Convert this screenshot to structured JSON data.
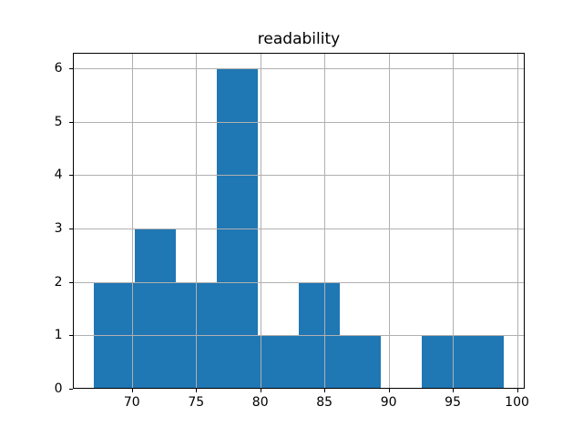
{
  "chart_data": {
    "type": "bar",
    "subtype": "histogram",
    "title": "readability",
    "xlabel": "",
    "ylabel": "",
    "bin_edges": [
      67.0,
      70.2,
      73.4,
      76.6,
      79.8,
      83.0,
      86.2,
      89.4,
      92.6,
      95.8,
      99.0
    ],
    "values": [
      2,
      3,
      2,
      6,
      1,
      2,
      1,
      0,
      1,
      1
    ],
    "x_ticks": [
      70,
      75,
      80,
      85,
      90,
      95,
      100
    ],
    "y_ticks": [
      0,
      1,
      2,
      3,
      4,
      5,
      6
    ],
    "xlim": [
      65.4,
      100.6
    ],
    "ylim": [
      0,
      6.3
    ],
    "grid": true,
    "grid_above_bars": true,
    "legend": false,
    "bar_color": "#1f77b4",
    "grid_color": "#b0b0b0",
    "axis_color": "#000000",
    "background_color": "#ffffff"
  }
}
